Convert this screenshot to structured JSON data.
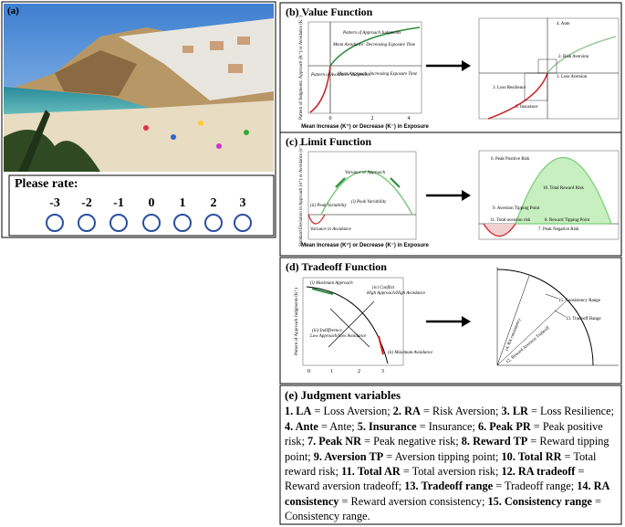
{
  "panel_a": {
    "label": "(a)",
    "prompt": "Please rate:",
    "scale": [
      "-3",
      "-2",
      "-1",
      "0",
      "1",
      "2",
      "3"
    ]
  },
  "panel_b": {
    "title": "(b) Value Function",
    "left": {
      "y_label": "Pattern of Judgments: Approach (K⁺) or Avoidance (K⁻)",
      "x_label": "Mean Increase (K⁺) or Decrease (K⁻) in Exposure",
      "ticks": [
        "0",
        "2",
        "4"
      ],
      "notes": [
        "Pattern of Approach Judgments",
        "Mean Avoidance: Decreasing Exposure Time",
        "Pattern of Avoidance Judgments",
        "Mean Approach: Increasing Exposure Time"
      ]
    },
    "right": {
      "notes": [
        "4. Ante",
        "2. Risk Aversion",
        "1. Loss Aversion",
        "3. Loss Resilience",
        "5. Insurance"
      ]
    }
  },
  "panel_c": {
    "title": "(c) Limit Function",
    "left": {
      "y_label": "Standard Deviation in Approach (σ⁺) or Avoidance (σ⁻)",
      "x_label": "Mean Increase (K⁺) or Decrease (K⁻) in Exposure",
      "notes": [
        "Variance or Approach",
        "(i) Peak Variability",
        "(ii) Peak Variability",
        "Variance in Avoidance"
      ]
    },
    "right": {
      "notes": [
        "6. Peak Positive Risk",
        "10. Total Reward Risk",
        "9. Aversion Tipping Point",
        "11. Total aversion risk",
        "8. Reward Tipping Point",
        "7. Peak Negative Risk"
      ]
    }
  },
  "panel_d": {
    "title": "(d) Tradeoff Function",
    "left": {
      "y_label": "Pattern of Approach Judgments (K⁺)",
      "notes": [
        "(i) Maximum Approach",
        "(iv) Conflict",
        "High Approach/High Avoidance",
        "(iii) Indifference",
        "Low Approach/Low Avoidance",
        "(ii) Maximum Avoidance"
      ]
    },
    "right": {
      "notes": [
        "15. Consistency Range",
        "13. Tradeoff Range",
        "14. RA consistency",
        "12. Reward Aversion Tradeoff"
      ]
    }
  },
  "panel_e": {
    "title": "(e) Judgment variables",
    "items": [
      {
        "term": "1. LA",
        "rest": " = Loss Aversion; "
      },
      {
        "term": "2. RA",
        "rest": " = Risk Aversion; "
      },
      {
        "term": "3. LR",
        "rest": " = Loss Resilience; "
      },
      {
        "term": "4. Ante",
        "rest": " = Ante; "
      },
      {
        "term": "5. Insurance",
        "rest": " = Insurance; "
      },
      {
        "term": "6. Peak PR",
        "rest": " = Peak positive risk; "
      },
      {
        "term": "7. Peak NR",
        "rest": " = Peak negative risk; "
      },
      {
        "term": "8. Reward TP",
        "rest": " = Reward tipping point; "
      },
      {
        "term": "9. Aversion TP",
        "rest": " = Aversion tipping point; "
      },
      {
        "term": "10. Total RR",
        "rest": " = Total reward risk; "
      },
      {
        "term": "11. Total AR",
        "rest": " = Total aversion risk; "
      },
      {
        "term": "12. RA tradeoff",
        "rest": " = Reward aversion tradeoff; "
      },
      {
        "term": "13. Tradeoff range",
        "rest": " = Tradeoff range; "
      },
      {
        "term": "14. RA consistency",
        "rest": " = Reward aversion consistency; "
      },
      {
        "term": "15. Consistency range",
        "rest": " = Consistency range."
      }
    ]
  }
}
